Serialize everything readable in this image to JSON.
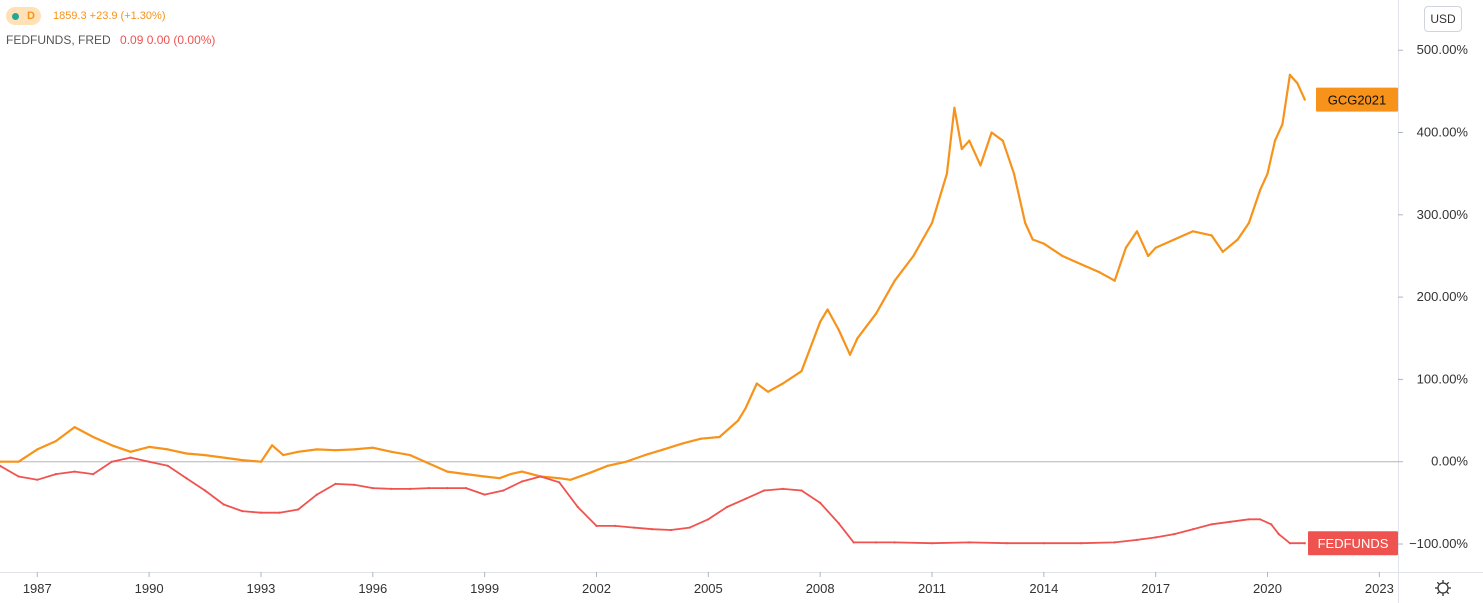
{
  "legend": {
    "interval": "D",
    "main_values": "1859.3  +23.9 (+1.30%)",
    "fed_symbol": "FEDFUNDS, FRED",
    "fed_values": "0.09  0.00 (0.00%)"
  },
  "currency_button": "USD",
  "colors": {
    "gold": "#f7931a",
    "fedfunds": "#ef5350",
    "axis": "#787b86",
    "zero_line": "#b2b5be"
  },
  "chart_data": {
    "type": "line",
    "y_axis": {
      "unit": "%",
      "ticks": [
        500,
        400,
        300,
        200,
        100,
        0,
        -100
      ],
      "tick_labels": [
        "500.00%",
        "400.00%",
        "300.00%",
        "200.00%",
        "100.00%",
        "0.00%",
        "−100.00%"
      ],
      "ylim": [
        -134,
        561
      ]
    },
    "x_axis": {
      "ticks": [
        1987,
        1990,
        1993,
        1996,
        1999,
        2002,
        2005,
        2008,
        2011,
        2014,
        2017,
        2020,
        2023
      ],
      "tick_labels": [
        "1987",
        "1990",
        "1993",
        "1996",
        "1999",
        "2002",
        "2005",
        "2008",
        "2011",
        "2014",
        "2017",
        "2020",
        "2023"
      ],
      "xlim": [
        1986.0,
        2023.5
      ]
    },
    "grid": false,
    "series": [
      {
        "name": "GCG2021",
        "color": "#f7931a",
        "x": [
          1986.0,
          1986.5,
          1987.0,
          1987.5,
          1988.0,
          1988.5,
          1989.0,
          1989.5,
          1990.0,
          1990.5,
          1991.0,
          1991.5,
          1992.0,
          1992.5,
          1993.0,
          1993.3,
          1993.6,
          1994.0,
          1994.5,
          1995.0,
          1995.5,
          1996.0,
          1996.5,
          1997.0,
          1997.5,
          1998.0,
          1998.5,
          1999.0,
          1999.4,
          1999.7,
          2000.0,
          2000.5,
          2001.0,
          2001.3,
          2001.8,
          2002.3,
          2002.8,
          2003.3,
          2003.8,
          2004.3,
          2004.8,
          2005.3,
          2005.8,
          2006.0,
          2006.3,
          2006.6,
          2007.0,
          2007.5,
          2008.0,
          2008.2,
          2008.5,
          2008.8,
          2009.0,
          2009.5,
          2010.0,
          2010.5,
          2011.0,
          2011.4,
          2011.6,
          2011.8,
          2012.0,
          2012.3,
          2012.6,
          2012.9,
          2013.2,
          2013.5,
          2013.7,
          2014.0,
          2014.5,
          2015.0,
          2015.5,
          2015.9,
          2016.2,
          2016.5,
          2016.8,
          2017.0,
          2017.5,
          2018.0,
          2018.5,
          2018.8,
          2019.2,
          2019.5,
          2019.8,
          2020.0,
          2020.2,
          2020.4,
          2020.6,
          2020.8,
          2021.0
        ],
        "values": [
          0,
          0,
          15,
          25,
          42,
          30,
          20,
          12,
          18,
          15,
          10,
          8,
          5,
          2,
          0,
          20,
          8,
          12,
          15,
          14,
          15,
          17,
          12,
          8,
          -2,
          -12,
          -15,
          -18,
          -20,
          -15,
          -12,
          -18,
          -20,
          -22,
          -14,
          -5,
          0,
          8,
          15,
          22,
          28,
          30,
          50,
          65,
          95,
          85,
          95,
          110,
          170,
          185,
          160,
          130,
          150,
          180,
          220,
          250,
          290,
          350,
          430,
          380,
          390,
          360,
          400,
          390,
          350,
          290,
          270,
          265,
          250,
          240,
          230,
          220,
          260,
          280,
          250,
          260,
          270,
          280,
          275,
          255,
          270,
          290,
          330,
          350,
          390,
          410,
          470,
          460,
          440
        ]
      },
      {
        "name": "FEDFUNDS",
        "color": "#ef5350",
        "x": [
          1986.0,
          1986.5,
          1987.0,
          1987.5,
          1988.0,
          1988.5,
          1989.0,
          1989.5,
          1990.0,
          1990.5,
          1991.0,
          1991.5,
          1992.0,
          1992.5,
          1993.0,
          1993.5,
          1994.0,
          1994.5,
          1995.0,
          1995.5,
          1996.0,
          1996.5,
          1997.0,
          1997.5,
          1998.0,
          1998.5,
          1999.0,
          1999.5,
          2000.0,
          2000.5,
          2001.0,
          2001.5,
          2002.0,
          2002.5,
          2003.0,
          2003.5,
          2004.0,
          2004.5,
          2005.0,
          2005.5,
          2006.0,
          2006.5,
          2007.0,
          2007.5,
          2008.0,
          2008.5,
          2008.9,
          2009.5,
          2010.0,
          2011.0,
          2012.0,
          2013.0,
          2014.0,
          2015.0,
          2015.9,
          2016.5,
          2017.0,
          2017.5,
          2018.0,
          2018.5,
          2019.0,
          2019.5,
          2019.8,
          2020.1,
          2020.3,
          2020.6,
          2021.0
        ],
        "values": [
          -5,
          -18,
          -22,
          -15,
          -12,
          -15,
          0,
          5,
          0,
          -5,
          -20,
          -35,
          -52,
          -60,
          -62,
          -62,
          -58,
          -40,
          -27,
          -28,
          -32,
          -33,
          -33,
          -32,
          -32,
          -32,
          -40,
          -35,
          -24,
          -18,
          -25,
          -55,
          -78,
          -78,
          -80,
          -82,
          -83,
          -80,
          -70,
          -55,
          -45,
          -35,
          -33,
          -35,
          -50,
          -75,
          -98,
          -98,
          -98,
          -99,
          -98,
          -99,
          -99,
          -99,
          -98,
          -95,
          -92,
          -88,
          -82,
          -76,
          -73,
          -70,
          -70,
          -76,
          -88,
          -99,
          -99
        ]
      }
    ]
  }
}
